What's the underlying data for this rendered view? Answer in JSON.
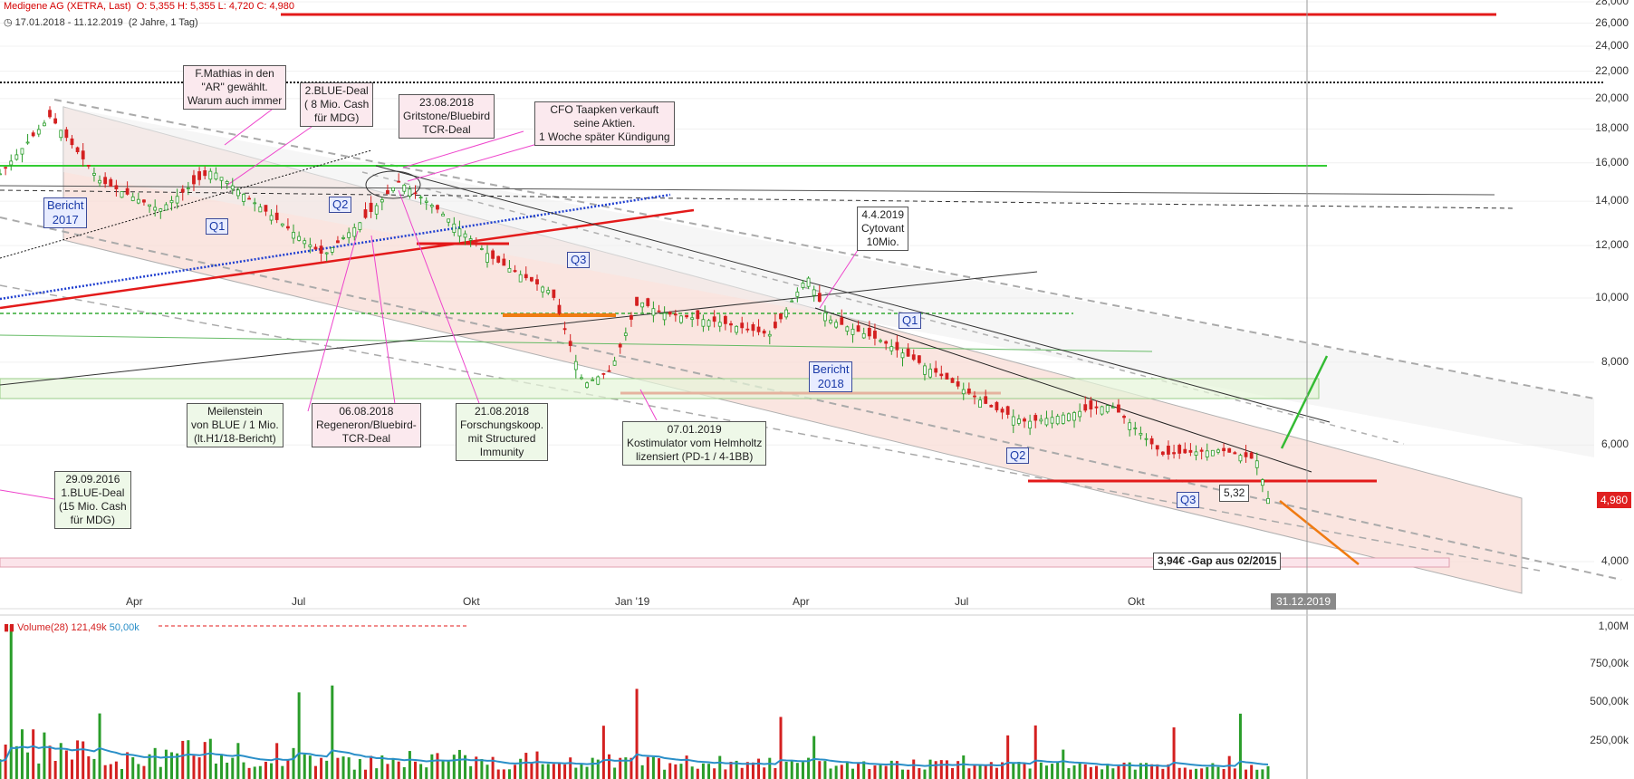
{
  "header": {
    "title": "Medigene AG (XETRA, Last)",
    "ohlc": "O: 5,355  H: 5,355  L: 4,720  C: 4,980",
    "range": "17.01.2018 - 11.12.2019",
    "range_detail": "(2 Jahre, 1 Tag)"
  },
  "colors": {
    "candle_up": "#2a9d2a",
    "candle_down": "#d42020",
    "channel_fill": "#f8dcd6",
    "resistance_red": "#e31a1a",
    "green_line": "#33cc33",
    "blue_dotted": "#1f3fd0",
    "orange": "#f07b12",
    "volume_ma": "#2a8fc8"
  },
  "chart_data": {
    "type": "line",
    "title": "Medigene AG (XETRA, Last)",
    "y_scale": "log",
    "ylim": [
      3.5,
      28.0
    ],
    "y_ticks": [
      "4,000",
      "6,000",
      "8,000",
      "10,000",
      "12,000",
      "14,000",
      "16,000",
      "18,000",
      "20,000",
      "22,000",
      "24,000",
      "26,000",
      "28,000"
    ],
    "y_tick_values": [
      4,
      6,
      8,
      10,
      12,
      14,
      16,
      18,
      20,
      22,
      24,
      26,
      28
    ],
    "x_ticks": [
      "Apr",
      "Jul",
      "Okt",
      "Jan '19",
      "Apr",
      "Jul",
      "Okt"
    ],
    "last_price_label": "4,980",
    "last_price": 4.98,
    "date_marker": "31.12.2019",
    "x_dates": [
      "2018-01-17",
      "2018-02-15",
      "2018-03-15",
      "2018-04-16",
      "2018-05-15",
      "2018-06-15",
      "2018-07-16",
      "2018-08-06",
      "2018-08-23",
      "2018-09-14",
      "2018-10-15",
      "2018-11-15",
      "2018-12-03",
      "2018-12-17",
      "2019-01-02",
      "2019-01-15",
      "2019-02-15",
      "2019-03-15",
      "2019-04-04",
      "2019-04-15",
      "2019-05-15",
      "2019-06-14",
      "2019-07-15",
      "2019-08-01",
      "2019-08-15",
      "2019-09-16",
      "2019-10-15",
      "2019-11-15",
      "2019-12-05",
      "2019-12-11"
    ],
    "x_dates_frac": [
      0.0,
      0.022,
      0.044,
      0.07,
      0.093,
      0.118,
      0.142,
      0.16,
      0.175,
      0.192,
      0.217,
      0.242,
      0.256,
      0.268,
      0.28,
      0.29,
      0.315,
      0.338,
      0.354,
      0.363,
      0.387,
      0.411,
      0.436,
      0.45,
      0.461,
      0.487,
      0.51,
      0.535,
      0.551,
      0.556
    ],
    "close": [
      15.4,
      18.8,
      15.0,
      13.6,
      15.6,
      13.4,
      11.6,
      13.2,
      15.0,
      13.6,
      11.4,
      10.2,
      7.4,
      7.8,
      9.9,
      9.5,
      9.2,
      8.8,
      10.8,
      9.3,
      8.6,
      7.7,
      6.8,
      6.5,
      6.6,
      6.9,
      5.8,
      5.9,
      5.7,
      4.98
    ],
    "series": [
      {
        "name": "Volume(28)",
        "value_label": "121,49k"
      },
      {
        "name": "",
        "value_label": "50,00k"
      }
    ],
    "volume_ticks": [
      "1,00M",
      "750,00k",
      "500,00k",
      "250,00k"
    ],
    "volume_tick_values": [
      1000000,
      750000,
      500000,
      250000
    ],
    "horizontal_levels": [
      26.0,
      15.8,
      12.1,
      9.5,
      7.3,
      5.0
    ],
    "gap_label": "3,94€ -Gap aus 02/2015"
  },
  "annotations": {
    "mathias": [
      "F.Mathias in den",
      "\"AR\" gewählt.",
      "Warum auch immer"
    ],
    "blue2": [
      "2.BLUE-Deal",
      "( 8 Mio. Cash",
      "für MDG)"
    ],
    "gritstone": [
      "23.08.2018",
      "Gritstone/Bluebird",
      "TCR-Deal"
    ],
    "cfo": [
      "CFO Taapken verkauft",
      "seine Aktien.",
      "1 Woche später Kündigung"
    ],
    "cytovant": [
      "4.4.2019",
      "Cytovant",
      "10Mio."
    ],
    "bericht2017": [
      "Bericht",
      "2017"
    ],
    "bericht2018": [
      "Bericht",
      "2018"
    ],
    "meilenstein": [
      "Meilenstein",
      "von BLUE / 1 Mio.",
      "(lt.H1/18-Bericht)"
    ],
    "regeneron": [
      "06.08.2018",
      "Regeneron/Bluebird-",
      "TCR-Deal"
    ],
    "forschung": [
      "21.08.2018",
      "Forschungskoop.",
      "mit Structured",
      "Immunity"
    ],
    "kostimulator": [
      "07.01.2019",
      "Kostimulator vom Helmholtz",
      "lizensiert (PD-1 / 4-1BB)"
    ],
    "blue1": [
      "29.09.2016",
      "1.BLUE-Deal",
      "(15 Mio. Cash",
      "für MDG)"
    ],
    "q_labels": [
      "Q1",
      "Q2",
      "Q3",
      "Q1",
      "Q2",
      "Q3"
    ],
    "price_note": "5,32"
  }
}
